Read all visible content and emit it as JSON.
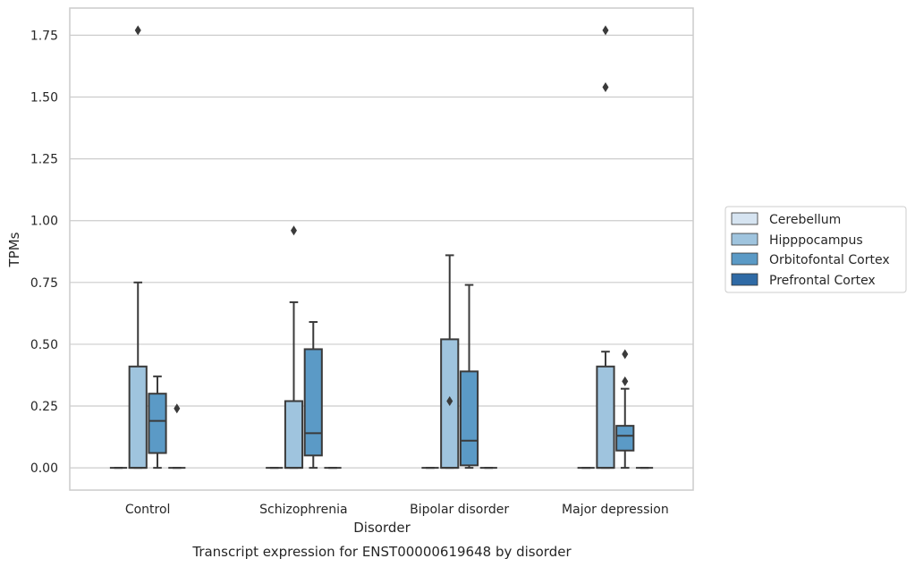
{
  "chart_data": {
    "type": "box",
    "caption": "Transcript expression for ENST00000619648 by disorder",
    "xlabel": "Disorder",
    "ylabel": "TPMs",
    "ylim": [
      -0.09,
      1.86
    ],
    "yticks": [
      "0.00",
      "0.25",
      "0.50",
      "0.75",
      "1.00",
      "1.25",
      "1.50",
      "1.75"
    ],
    "ytick_values": [
      0,
      0.25,
      0.5,
      0.75,
      1.0,
      1.25,
      1.5,
      1.75
    ],
    "categories": [
      "Control",
      "Schizophrenia",
      "Bipolar disorder",
      "Major depression"
    ],
    "grid": "horizontal",
    "legend_position": "right",
    "series": [
      {
        "name": "Cerebellum",
        "color": "#d6e4f1",
        "boxes": [
          {
            "q1": 0,
            "median": 0,
            "q3": 0,
            "whisker_low": 0,
            "whisker_high": 0,
            "outliers": []
          },
          {
            "q1": 0,
            "median": 0,
            "q3": 0,
            "whisker_low": 0,
            "whisker_high": 0,
            "outliers": []
          },
          {
            "q1": 0,
            "median": 0,
            "q3": 0,
            "whisker_low": 0,
            "whisker_high": 0,
            "outliers": []
          },
          {
            "q1": 0,
            "median": 0,
            "q3": 0,
            "whisker_low": 0,
            "whisker_high": 0,
            "outliers": []
          }
        ]
      },
      {
        "name": "Hipppocampus",
        "color": "#9fc4de",
        "boxes": [
          {
            "q1": 0,
            "median": 0,
            "q3": 0.41,
            "whisker_low": 0,
            "whisker_high": 0.75,
            "outliers": [
              1.77
            ]
          },
          {
            "q1": 0,
            "median": 0,
            "q3": 0.27,
            "whisker_low": 0,
            "whisker_high": 0.67,
            "outliers": [
              0.96
            ]
          },
          {
            "q1": 0,
            "median": 0,
            "q3": 0.52,
            "whisker_low": 0,
            "whisker_high": 0.86,
            "outliers": [
              0.27
            ]
          },
          {
            "q1": 0,
            "median": 0,
            "q3": 0.41,
            "whisker_low": 0,
            "whisker_high": 0.47,
            "outliers": [
              1.54,
              1.77
            ]
          }
        ]
      },
      {
        "name": "Orbitofontal Cortex",
        "color": "#5b9ac6",
        "boxes": [
          {
            "q1": 0.06,
            "median": 0.19,
            "q3": 0.3,
            "whisker_low": 0,
            "whisker_high": 0.37,
            "outliers": []
          },
          {
            "q1": 0.05,
            "median": 0.14,
            "q3": 0.48,
            "whisker_low": 0,
            "whisker_high": 0.59,
            "outliers": []
          },
          {
            "q1": 0.01,
            "median": 0.11,
            "q3": 0.39,
            "whisker_low": 0,
            "whisker_high": 0.74,
            "outliers": []
          },
          {
            "q1": 0.07,
            "median": 0.13,
            "q3": 0.17,
            "whisker_low": 0,
            "whisker_high": 0.32,
            "outliers": [
              0.35,
              0.46
            ]
          }
        ]
      },
      {
        "name": "Prefrontal Cortex",
        "color": "#2f6aa5",
        "boxes": [
          {
            "q1": 0,
            "median": 0,
            "q3": 0,
            "whisker_low": 0,
            "whisker_high": 0,
            "outliers": [
              0.24
            ]
          },
          {
            "q1": 0,
            "median": 0,
            "q3": 0,
            "whisker_low": 0,
            "whisker_high": 0,
            "outliers": []
          },
          {
            "q1": 0,
            "median": 0,
            "q3": 0,
            "whisker_low": 0,
            "whisker_high": 0,
            "outliers": []
          },
          {
            "q1": 0,
            "median": 0,
            "q3": 0,
            "whisker_low": 0,
            "whisker_high": 0,
            "outliers": []
          }
        ]
      }
    ]
  }
}
